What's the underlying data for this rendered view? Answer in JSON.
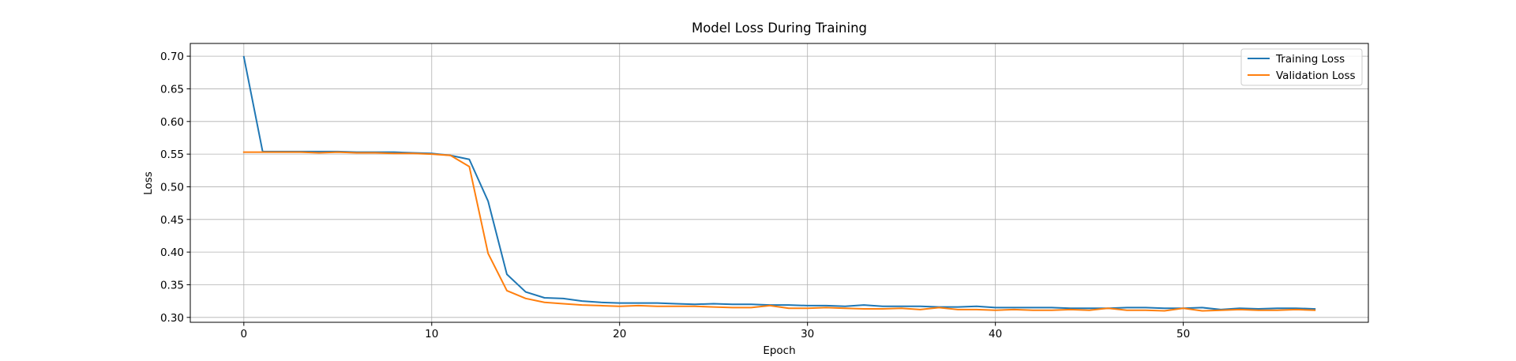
{
  "chart_data": {
    "type": "line",
    "title": "Model Loss During Training",
    "xlabel": "Epoch",
    "ylabel": "Loss",
    "xlim": [
      -2.85,
      59.85
    ],
    "ylim": [
      0.2925,
      0.7195
    ],
    "xticks": [
      0,
      10,
      20,
      30,
      40,
      50
    ],
    "yticks": [
      0.3,
      0.35,
      0.4,
      0.45,
      0.5,
      0.55,
      0.6,
      0.65,
      0.7
    ],
    "xtick_labels": [
      "0",
      "10",
      "20",
      "30",
      "40",
      "50"
    ],
    "ytick_labels": [
      "0.30",
      "0.35",
      "0.40",
      "0.45",
      "0.50",
      "0.55",
      "0.60",
      "0.65",
      "0.70"
    ],
    "grid": true,
    "legend_position": "top-right",
    "series": [
      {
        "name": "Training Loss",
        "color": "#1f77b4",
        "values": [
          0.699,
          0.554,
          0.554,
          0.554,
          0.554,
          0.554,
          0.553,
          0.553,
          0.553,
          0.552,
          0.551,
          0.548,
          0.542,
          0.478,
          0.366,
          0.339,
          0.33,
          0.329,
          0.325,
          0.323,
          0.322,
          0.322,
          0.322,
          0.321,
          0.32,
          0.321,
          0.32,
          0.32,
          0.319,
          0.319,
          0.318,
          0.318,
          0.317,
          0.319,
          0.317,
          0.317,
          0.317,
          0.316,
          0.316,
          0.317,
          0.315,
          0.315,
          0.315,
          0.315,
          0.314,
          0.314,
          0.314,
          0.315,
          0.315,
          0.314,
          0.314,
          0.315,
          0.312,
          0.314,
          0.313,
          0.314,
          0.314,
          0.313
        ]
      },
      {
        "name": "Validation Loss",
        "color": "#ff7f0e",
        "values": [
          0.553,
          0.553,
          0.553,
          0.553,
          0.552,
          0.553,
          0.552,
          0.552,
          0.551,
          0.551,
          0.55,
          0.548,
          0.531,
          0.398,
          0.341,
          0.329,
          0.323,
          0.321,
          0.319,
          0.318,
          0.317,
          0.318,
          0.317,
          0.317,
          0.317,
          0.316,
          0.315,
          0.315,
          0.318,
          0.314,
          0.314,
          0.315,
          0.314,
          0.313,
          0.313,
          0.314,
          0.312,
          0.315,
          0.312,
          0.312,
          0.311,
          0.312,
          0.311,
          0.311,
          0.312,
          0.311,
          0.314,
          0.311,
          0.311,
          0.31,
          0.314,
          0.31,
          0.311,
          0.312,
          0.311,
          0.311,
          0.312,
          0.311
        ]
      }
    ]
  }
}
